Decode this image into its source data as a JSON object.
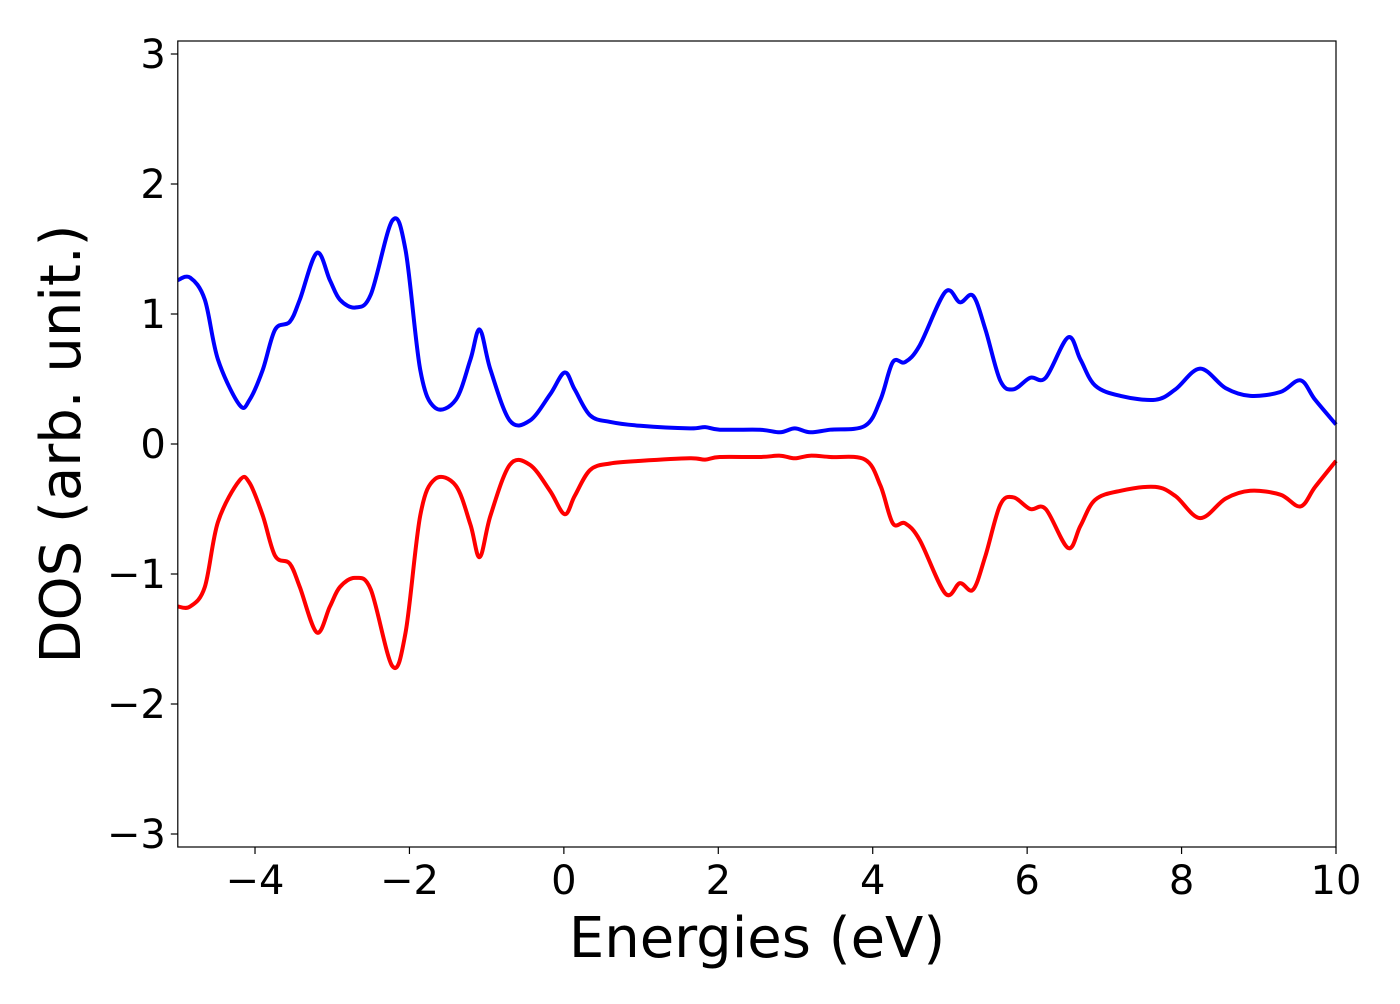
{
  "chart_data": {
    "type": "line",
    "title": "",
    "xlabel": "Energies (eV)",
    "ylabel": "DOS (arb. unit.)",
    "xlim": [
      -5,
      10
    ],
    "ylim": [
      -3.1,
      3.1
    ],
    "xticks": [
      -4,
      -2,
      0,
      2,
      4,
      6,
      8,
      10
    ],
    "xtick_labels": [
      "−4",
      "−2",
      "0",
      "2",
      "4",
      "6",
      "8",
      "10"
    ],
    "yticks": [
      -3,
      -2,
      -1,
      0,
      1,
      2,
      3
    ],
    "ytick_labels": [
      "−3",
      "−2",
      "−1",
      "0",
      "1",
      "2",
      "3"
    ],
    "grid": false,
    "legend": "none",
    "x": [
      -5,
      -4.84,
      -4.65,
      -4.48,
      -4.2,
      -4.07,
      -3.9,
      -3.74,
      -3.55,
      -3.42,
      -3.2,
      -3.03,
      -2.9,
      -2.7,
      -2.5,
      -2.22,
      -2.05,
      -1.86,
      -1.67,
      -1.4,
      -1.21,
      -1.09,
      -0.95,
      -0.7,
      -0.44,
      -0.18,
      0.01,
      0.14,
      0.34,
      0.6,
      0.99,
      1.63,
      1.83,
      2.02,
      2.54,
      2.8,
      2.99,
      3.19,
      3.45,
      3.9,
      4.1,
      4.26,
      4.42,
      4.61,
      4.94,
      5.13,
      5.3,
      5.46,
      5.65,
      5.82,
      6.04,
      6.24,
      6.53,
      6.69,
      6.88,
      7.21,
      7.66,
      7.92,
      8.24,
      8.57,
      8.89,
      9.28,
      9.54,
      9.73,
      10
    ],
    "series": [
      {
        "color": "#0000ff",
        "values": [
          1.26,
          1.28,
          1.11,
          0.65,
          0.3,
          0.34,
          0.57,
          0.88,
          0.94,
          1.11,
          1.47,
          1.26,
          1.11,
          1.05,
          1.15,
          1.72,
          1.49,
          0.57,
          0.28,
          0.34,
          0.65,
          0.88,
          0.57,
          0.18,
          0.18,
          0.38,
          0.55,
          0.42,
          0.22,
          0.17,
          0.14,
          0.12,
          0.13,
          0.11,
          0.11,
          0.09,
          0.12,
          0.09,
          0.11,
          0.14,
          0.34,
          0.63,
          0.63,
          0.76,
          1.17,
          1.09,
          1.14,
          0.88,
          0.49,
          0.42,
          0.51,
          0.51,
          0.82,
          0.65,
          0.45,
          0.37,
          0.34,
          0.42,
          0.58,
          0.43,
          0.37,
          0.4,
          0.49,
          0.34,
          0.15
        ]
      },
      {
        "color": "#ff0000",
        "values": [
          -1.25,
          -1.25,
          -1.1,
          -0.6,
          -0.28,
          -0.3,
          -0.55,
          -0.86,
          -0.92,
          -1.1,
          -1.45,
          -1.25,
          -1.1,
          -1.03,
          -1.12,
          -1.71,
          -1.45,
          -0.55,
          -0.27,
          -0.32,
          -0.62,
          -0.87,
          -0.55,
          -0.16,
          -0.16,
          -0.36,
          -0.54,
          -0.4,
          -0.2,
          -0.15,
          -0.13,
          -0.11,
          -0.12,
          -0.1,
          -0.1,
          -0.09,
          -0.11,
          -0.09,
          -0.1,
          -0.12,
          -0.32,
          -0.61,
          -0.61,
          -0.74,
          -1.15,
          -1.07,
          -1.12,
          -0.86,
          -0.47,
          -0.41,
          -0.5,
          -0.5,
          -0.8,
          -0.63,
          -0.43,
          -0.36,
          -0.33,
          -0.4,
          -0.57,
          -0.42,
          -0.36,
          -0.39,
          -0.48,
          -0.33,
          -0.13
        ]
      }
    ]
  }
}
